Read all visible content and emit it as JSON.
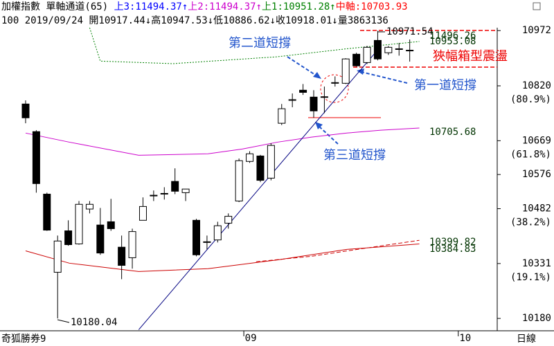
{
  "header": [
    [
      {
        "text": "加權指數 單軸通道(65) ",
        "color": "#000000"
      },
      {
        "text": "上3:11494.37↑",
        "color": "#0000ff"
      },
      {
        "text": "上2:11494.37↑",
        "color": "#cc00cc"
      },
      {
        "text": "上1:10951.28↑",
        "color": "#008000"
      },
      {
        "text": "中軸:10703.93",
        "color": "#ff0000"
      }
    ],
    [
      {
        "text": "100 2019/09/24 開10917.44↓高10947.53↓低10886.62↓收10918.01↓量3863136",
        "color": "#000000"
      }
    ]
  ],
  "footer": {
    "left": "奇狐勝券9",
    "right": "日線"
  },
  "chart_data": {
    "type": "candlestick",
    "up_color": "#ffffff",
    "down_color": "#000000",
    "open": [
      10770,
      10694,
      10522,
      10307,
      10421,
      10385,
      10481,
      10437,
      10446,
      10376,
      10347,
      10450,
      10517,
      10522,
      10557,
      10526,
      10450,
      10389,
      10396,
      10442,
      10503,
      10612,
      10627,
      10566,
      10717,
      10780,
      10808,
      10789,
      10789,
      10827,
      10827,
      10907,
      10884,
      10945,
      10911,
      10922,
      10917.44
    ],
    "high": [
      10780,
      10698,
      10526,
      10408,
      10450,
      10503,
      10503,
      10484,
      10509,
      10408,
      10427,
      10513,
      10532,
      10541,
      10593,
      10536,
      10454,
      10408,
      10446,
      10469,
      10620,
      10640,
      10630,
      10662,
      10770,
      10799,
      10825,
      10808,
      10818,
      10846,
      10896,
      10911,
      10930,
      10971.54,
      10930,
      10938,
      10947.53
    ],
    "low": [
      10717,
      10526,
      10421,
      10180.04,
      10380,
      10383,
      10469,
      10355,
      10421,
      10288,
      10317,
      10450,
      10503,
      10507,
      10522,
      10503,
      10351,
      10370,
      10389,
      10427,
      10500,
      10608,
      10555,
      10560,
      10712,
      10761,
      10795,
      10732,
      10745,
      10818,
      10825,
      10873,
      10880,
      10890,
      10905,
      10903,
      10886.62
    ],
    "close": [
      10732,
      10551,
      10423,
      10393,
      10383,
      10494,
      10494,
      10360,
      10427,
      10326,
      10419,
      10488,
      10519,
      10524,
      10530,
      10536,
      10355,
      10391,
      10435,
      10461,
      10614,
      10633,
      10560,
      10656,
      10757,
      10782,
      10802,
      10751,
      10790,
      10829,
      10894,
      10875,
      10926,
      10894,
      10926,
      10921,
      10918.01
    ],
    "lines": [
      {
        "color": "#cc00cc",
        "dash": "none",
        "x": [
          0,
          4.1,
          10.6,
          17.1,
          20.3,
          23.6,
          26.8,
          30.1,
          33.3,
          36.9
        ],
        "values": [
          10690,
          10665,
          10629,
          10633,
          10646,
          10665,
          10679,
          10690,
          10698,
          10703.9
        ]
      },
      {
        "color": "#cc0000",
        "dash": "none",
        "x": [
          0,
          4.1,
          10.6,
          17.1,
          23.6,
          30.1,
          36.9
        ],
        "values": [
          10366,
          10332,
          10309,
          10317,
          10341,
          10370,
          10385
        ]
      },
      {
        "color": "#cc0000",
        "dash": "6 3",
        "x": [
          21.6,
          26.8,
          32,
          36.9
        ],
        "values": [
          10336,
          10351,
          10374,
          10395
        ]
      },
      {
        "color": "#008000",
        "dash": "2 2",
        "x": [
          6,
          7,
          13.8,
          23.6,
          30.1,
          36.9
        ],
        "values": [
          10980,
          10888,
          10881,
          10900,
          10922,
          10942
        ]
      },
      {
        "color": "#000080",
        "dash": "none",
        "x": [
          10.6,
          33
        ],
        "values": [
          10149,
          10919
        ]
      }
    ],
    "line_labels": [
      11496.26,
      10953.08,
      10705.68,
      10399.82,
      10384.83
    ],
    "xlim": [
      -2.4,
      44.2
    ],
    "xticks": [
      {
        "value": 21.1,
        "label": "09"
      },
      {
        "value": 41.2,
        "label": "10"
      }
    ],
    "ylim": [
      10146,
      10980
    ],
    "yticks": [
      10972,
      10820,
      10669,
      10576,
      10482,
      10331,
      10180
    ],
    "ytick_notes": [
      null,
      "(80.9%)",
      "(61.8%)",
      null,
      "(38.2%)",
      "(19.1%)",
      null
    ],
    "annotations": [
      "第二道短撐",
      "第一道短撐",
      "第三道短撐",
      "狹幅箱型震盪"
    ]
  }
}
